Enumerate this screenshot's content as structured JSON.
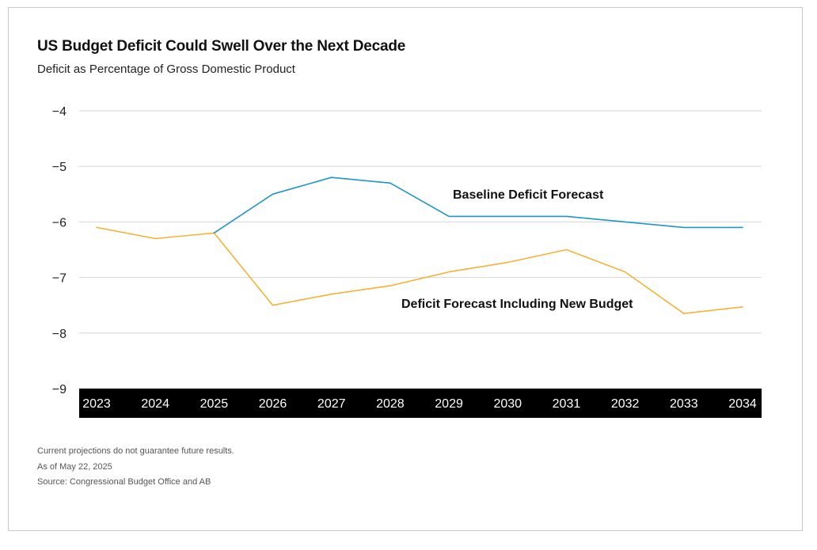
{
  "title": "US Budget Deficit Could Swell Over the Next Decade",
  "subtitle": "Deficit as Percentage of Gross Domestic Product",
  "notes": [
    "Current projections do not guarantee future results.",
    "As of May 22, 2025",
    "Source: Congressional Budget Office and AB"
  ],
  "chart_data": {
    "type": "line",
    "x": [
      "2023",
      "2024",
      "2025",
      "2026",
      "2027",
      "2028",
      "2029",
      "2030",
      "2031",
      "2032",
      "2033",
      "2034"
    ],
    "yticks": [
      "−4",
      "−5",
      "−6",
      "−7",
      "−8",
      "−9"
    ],
    "ytick_values": [
      -4,
      -5,
      -6,
      -7,
      -8,
      -9
    ],
    "ylim": [
      -9,
      -4
    ],
    "grid": true,
    "series": [
      {
        "name": "Baseline Deficit Forecast",
        "color": "#1f96c8",
        "values": [
          null,
          null,
          -6.2,
          -5.5,
          -5.2,
          -5.3,
          -5.9,
          -5.9,
          -5.9,
          -6.0,
          -6.1,
          -6.1
        ]
      },
      {
        "name": "Deficit Forecast Including New Budget",
        "color": "#f5b335",
        "values": [
          -6.1,
          -6.3,
          -6.2,
          -7.5,
          -7.3,
          -7.15,
          -6.9,
          -6.73,
          -6.5,
          -6.9,
          -7.65,
          -7.53
        ]
      }
    ]
  }
}
